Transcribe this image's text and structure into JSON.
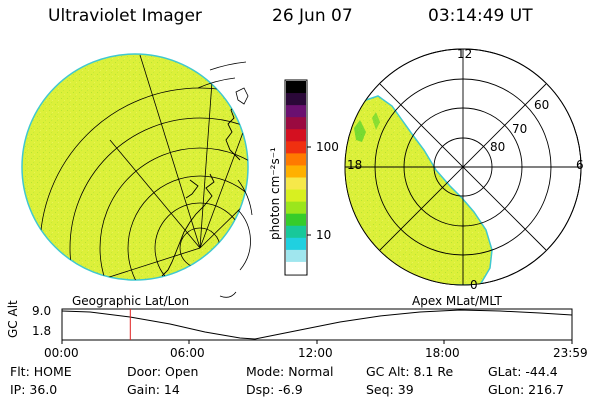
{
  "header": {
    "instrument": "Ultraviolet Imager",
    "date": "26 Jun 07",
    "time": "03:14:49 UT"
  },
  "colorbar": {
    "unit_label": "photon cm⁻²s⁻¹",
    "ticks": [
      "100",
      "10"
    ],
    "colors": [
      "#000000",
      "#2a0838",
      "#6a1070",
      "#9a0a40",
      "#d41020",
      "#f03010",
      "#ff7a00",
      "#ffb000",
      "#f6e84a",
      "#d8f020",
      "#9be61c",
      "#36cc2a",
      "#18c89a",
      "#20d0e0",
      "#a0e6ee",
      "#ffffff"
    ]
  },
  "left_panel": {
    "caption": "Geographic Lat/Lon",
    "fill_color": "#dcf03a",
    "edge_color": "#40c8d0"
  },
  "right_panel": {
    "caption": "Apex MLat/MLT",
    "mlt_labels": {
      "top": "12",
      "left": "18",
      "right": "6",
      "bottom": "0"
    },
    "lat_labels": [
      "60",
      "70",
      "80"
    ]
  },
  "altitude_plot": {
    "ylabel": "GC Alt",
    "yticks": [
      "9.0",
      "1.8"
    ],
    "xticks": [
      "00:00",
      "06:00",
      "12:00",
      "18:00",
      "23:59"
    ],
    "marker_color": "#e02020",
    "marker_time_frac": 0.134
  },
  "status": {
    "filter": "Flt: HOME",
    "door": "Door: Open",
    "mode": "Mode: Normal",
    "gc_alt": "GC Alt: 8.1 Re",
    "glat": "GLat: -44.4",
    "ip": "IP: 36.0",
    "gain": "Gain: 14",
    "dsp": "Dsp:   -6.9",
    "seq": "Seq: 39",
    "glon": "GLon: 216.7"
  }
}
